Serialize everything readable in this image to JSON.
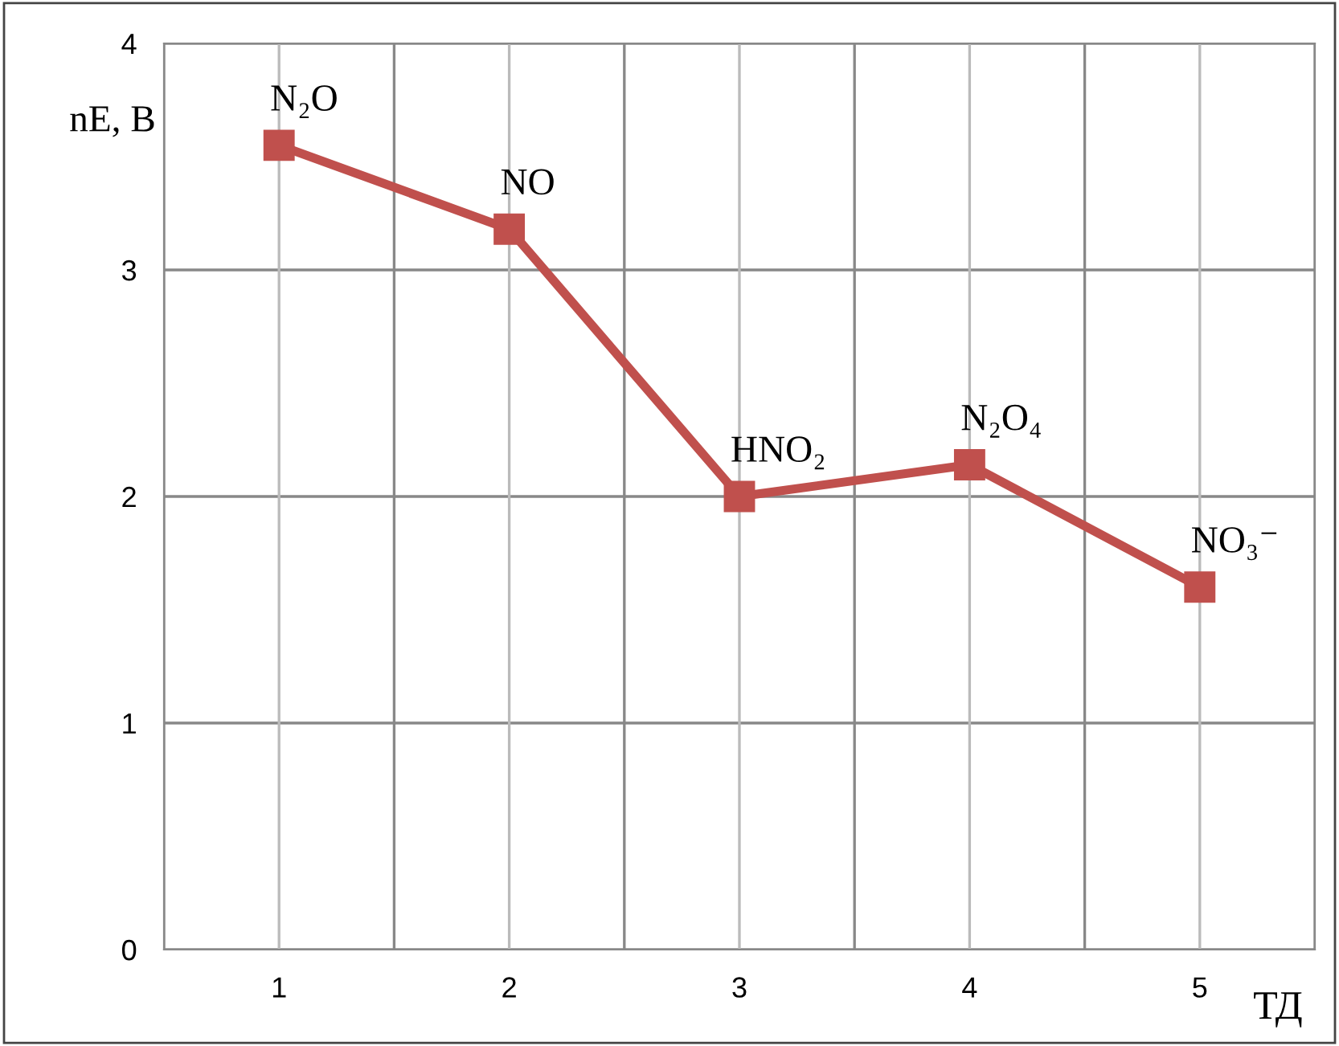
{
  "chart_data": {
    "type": "line",
    "xlabel": "ТД",
    "ylabel": "nE, В",
    "categories": [
      "1",
      "2",
      "3",
      "4",
      "5"
    ],
    "series": [
      {
        "color": "#c0504d",
        "values": [
          3.55,
          3.18,
          2.0,
          2.14,
          1.6
        ]
      }
    ],
    "ylim": [
      0,
      4
    ],
    "yticks": [
      0,
      1,
      2,
      3,
      4
    ],
    "grid": true,
    "marker": "square",
    "line_style": "solid",
    "annotations": [
      {
        "text": "N₂O",
        "x": "1",
        "y": 3.55
      },
      {
        "text": "NO",
        "x": "2",
        "y": 3.18
      },
      {
        "text": "HNO₂",
        "x": "3",
        "y": 2.0
      },
      {
        "text": "N₂O₄",
        "x": "4",
        "y": 2.14
      },
      {
        "text": "NO₃⁻",
        "x": "5",
        "y": 1.6
      }
    ]
  }
}
